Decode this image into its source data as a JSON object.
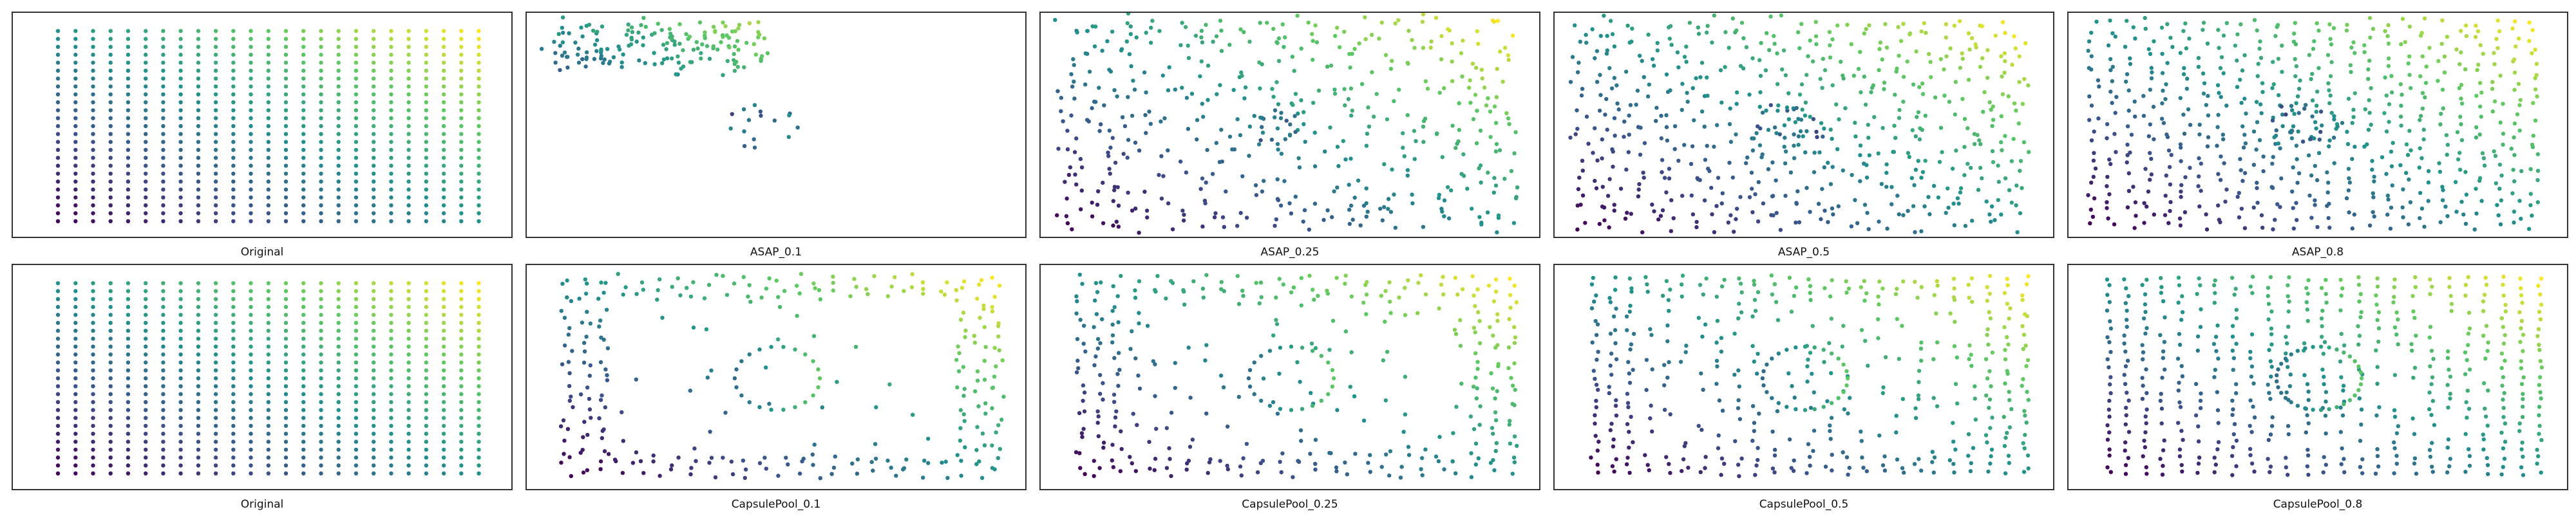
{
  "figure": {
    "colormap": "viridis",
    "colormap_stops": [
      "#440154",
      "#3b528b",
      "#21918c",
      "#5ec962",
      "#fde725"
    ],
    "point_color": "viridis-by-position"
  },
  "chart_data": [
    {
      "type": "scatter",
      "title": "Original",
      "pattern": "grid",
      "ratio": 1.0
    },
    {
      "type": "scatter",
      "title": "ASAP_0.1",
      "pattern": "asap",
      "ratio": 0.1
    },
    {
      "type": "scatter",
      "title": "ASAP_0.25",
      "pattern": "asap",
      "ratio": 0.25
    },
    {
      "type": "scatter",
      "title": "ASAP_0.5",
      "pattern": "asap",
      "ratio": 0.5
    },
    {
      "type": "scatter",
      "title": "ASAP_0.8",
      "pattern": "asap",
      "ratio": 0.8
    },
    {
      "type": "scatter",
      "title": "Original",
      "pattern": "grid",
      "ratio": 1.0
    },
    {
      "type": "scatter",
      "title": "CapsulePool_0.1",
      "pattern": "capsule",
      "ratio": 0.1
    },
    {
      "type": "scatter",
      "title": "CapsulePool_0.25",
      "pattern": "capsule",
      "ratio": 0.25
    },
    {
      "type": "scatter",
      "title": "CapsulePool_0.5",
      "pattern": "capsule",
      "ratio": 0.5
    },
    {
      "type": "scatter",
      "title": "CapsulePool_0.8",
      "pattern": "capsule",
      "ratio": 0.8
    }
  ]
}
